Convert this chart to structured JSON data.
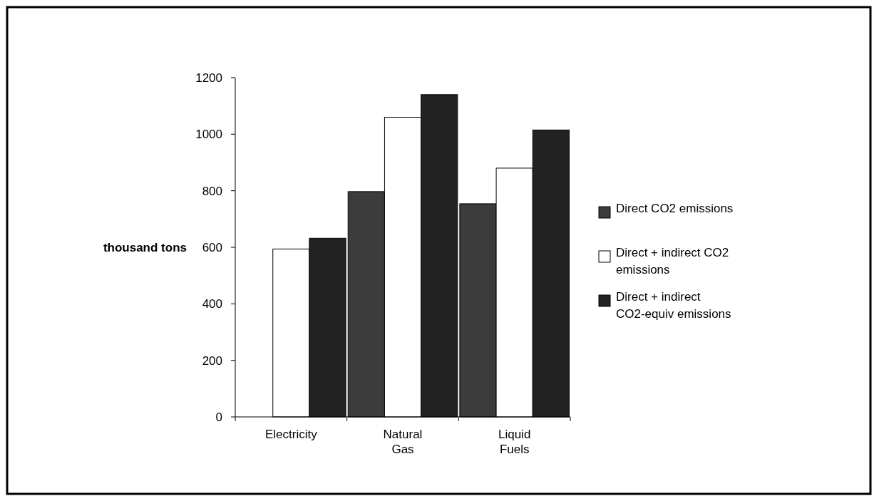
{
  "chart_data": {
    "type": "bar",
    "ylabel": "thousand tons",
    "categories": [
      "Electricity",
      "Natural Gas",
      "Liquid Fuels"
    ],
    "series": [
      {
        "name": "Direct CO2 emissions",
        "color": "#3c3c3c",
        "values": [
          0,
          797,
          754
        ]
      },
      {
        "name": "Direct + indirect CO2 emissions",
        "color": "#ffffff",
        "values": [
          594,
          1060,
          880
        ]
      },
      {
        "name": "Direct + indirect CO2-equiv emissions",
        "color": "#222222",
        "values": [
          632,
          1140,
          1015
        ]
      }
    ],
    "ylim": [
      0,
      1200
    ],
    "yticks": [
      0,
      200,
      400,
      600,
      800,
      1000,
      1200
    ],
    "grid": false,
    "legend": "right"
  }
}
